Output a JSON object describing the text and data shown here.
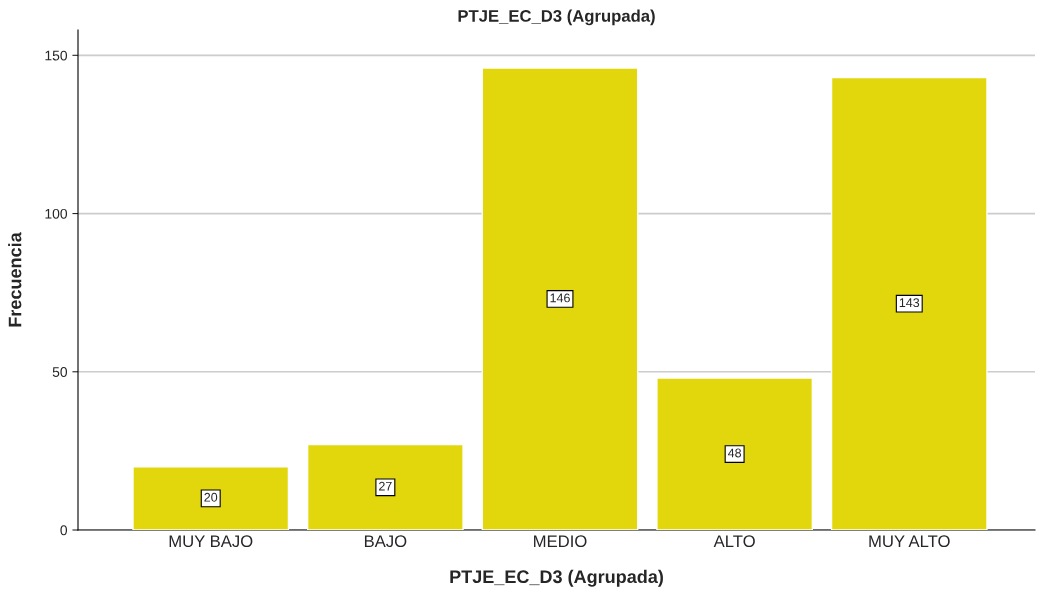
{
  "chart_data": {
    "type": "bar",
    "title": "PTJE_EC_D3 (Agrupada)",
    "xlabel": "PTJE_EC_D3 (Agrupada)",
    "ylabel": "Frecuencia",
    "categories": [
      "MUY BAJO",
      "BAJO",
      "MEDIO",
      "ALTO",
      "MUY ALTO"
    ],
    "values": [
      20,
      27,
      146,
      48,
      143
    ],
    "color": "#e1d70c",
    "ylim": [
      0,
      158
    ],
    "yticks": [
      0,
      50,
      100,
      150
    ],
    "grid": "y",
    "data_labels": true
  }
}
